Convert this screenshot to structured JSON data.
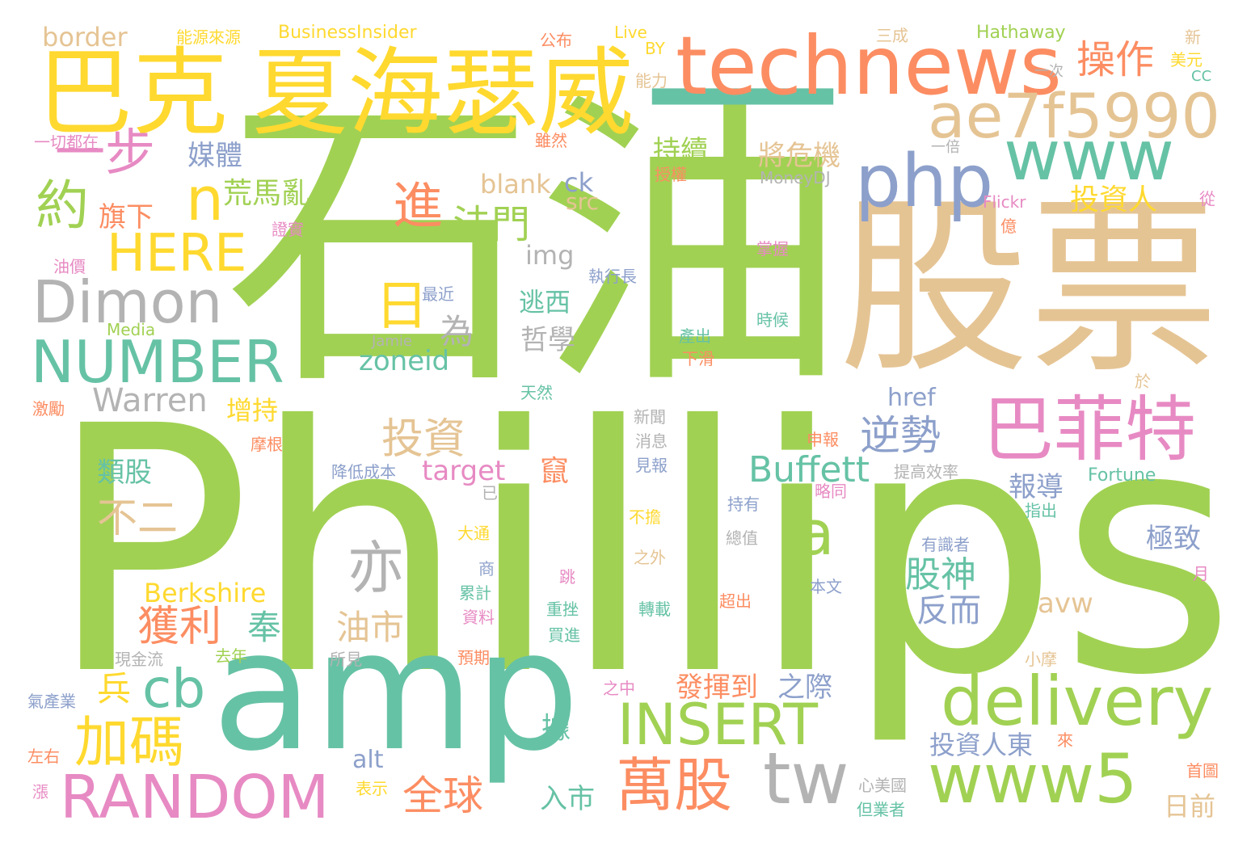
{
  "colors": {
    "green": "#a1d153",
    "teal": "#66c2a5",
    "tan": "#e5c494",
    "orange": "#fc8d62",
    "yellow": "#ffd92f",
    "blue": "#8da0cb",
    "pink": "#e78ac3",
    "gray": "#b3b3b3"
  },
  "words": [
    {
      "text": "Phillips",
      "color": "green"
    },
    {
      "text": "石油",
      "color": "green"
    },
    {
      "text": "股票",
      "color": "tan"
    },
    {
      "text": "amp",
      "color": "teal"
    },
    {
      "text": "一",
      "color": "teal"
    },
    {
      "text": "巴克",
      "color": "yellow"
    },
    {
      "text": "夏海瑟威",
      "color": "yellow"
    },
    {
      "text": "technews",
      "color": "orange"
    },
    {
      "text": "ae7f5990",
      "color": "tan"
    },
    {
      "text": "www",
      "color": "teal"
    },
    {
      "text": "php",
      "color": "blue"
    },
    {
      "text": "巴菲特",
      "color": "pink"
    },
    {
      "text": "delivery",
      "color": "green"
    },
    {
      "text": "www5",
      "color": "green"
    },
    {
      "text": "tw",
      "color": "gray"
    },
    {
      "text": "萬股",
      "color": "orange"
    },
    {
      "text": "INSERT",
      "color": "green"
    },
    {
      "text": "RANDOM",
      "color": "pink"
    },
    {
      "text": "加碼",
      "color": "yellow"
    },
    {
      "text": "cb",
      "color": "teal"
    },
    {
      "text": "NUMBER",
      "color": "teal"
    },
    {
      "text": "Dimon",
      "color": "gray"
    },
    {
      "text": "HERE",
      "color": "yellow"
    },
    {
      "text": "n",
      "color": "yellow"
    },
    {
      "text": "約",
      "color": "green"
    },
    {
      "text": "一步",
      "color": "pink"
    },
    {
      "text": "操作",
      "color": "orange"
    },
    {
      "text": "進",
      "color": "orange"
    },
    {
      "text": "日",
      "color": "yellow"
    },
    {
      "text": "亦",
      "color": "gray"
    },
    {
      "text": "a",
      "color": "green"
    },
    {
      "text": "投資",
      "color": "tan"
    },
    {
      "text": "獲利",
      "color": "orange"
    },
    {
      "text": "法門",
      "color": "green"
    },
    {
      "text": "不二",
      "color": "tan"
    },
    {
      "text": "Buffett",
      "color": "teal"
    },
    {
      "text": "逆勢",
      "color": "blue"
    },
    {
      "text": "全球",
      "color": "orange"
    },
    {
      "text": "Warren",
      "color": "gray"
    },
    {
      "text": "zoneid",
      "color": "teal"
    },
    {
      "text": "target",
      "color": "pink"
    },
    {
      "text": "Berkshire",
      "color": "yellow"
    },
    {
      "text": "股神",
      "color": "teal"
    },
    {
      "text": "反而",
      "color": "blue"
    },
    {
      "text": "油市",
      "color": "tan"
    },
    {
      "text": "為",
      "color": "gray"
    },
    {
      "text": "媒體",
      "color": "blue"
    },
    {
      "text": "荒馬亂",
      "color": "green"
    },
    {
      "text": "旗下",
      "color": "orange"
    },
    {
      "text": "持續",
      "color": "green"
    },
    {
      "text": "將危機",
      "color": "tan"
    },
    {
      "text": "投資人",
      "color": "yellow"
    },
    {
      "text": "blank",
      "color": "tan"
    },
    {
      "text": "ck",
      "color": "blue"
    },
    {
      "text": "src",
      "color": "tan"
    },
    {
      "text": "img",
      "color": "gray"
    },
    {
      "text": "逃西",
      "color": "teal"
    },
    {
      "text": "哲學",
      "color": "gray"
    },
    {
      "text": "增持",
      "color": "yellow"
    },
    {
      "text": "類股",
      "color": "teal"
    },
    {
      "text": "兵",
      "color": "yellow"
    },
    {
      "text": "奉",
      "color": "teal"
    },
    {
      "text": "發揮到",
      "color": "orange"
    },
    {
      "text": "之際",
      "color": "blue"
    },
    {
      "text": "href",
      "color": "blue"
    },
    {
      "text": "報導",
      "color": "blue"
    },
    {
      "text": "極致",
      "color": "blue"
    },
    {
      "text": "avw",
      "color": "tan"
    },
    {
      "text": "投資人東",
      "color": "blue"
    },
    {
      "text": "日前",
      "color": "tan"
    },
    {
      "text": "入市",
      "color": "teal"
    },
    {
      "text": "alt",
      "color": "blue"
    },
    {
      "text": "border",
      "color": "tan"
    },
    {
      "text": "能源來源",
      "color": "yellow"
    },
    {
      "text": "BusinessInsider",
      "color": "yellow"
    },
    {
      "text": "公布",
      "color": "orange"
    },
    {
      "text": "Live",
      "color": "yellow"
    },
    {
      "text": "BY",
      "color": "yellow"
    },
    {
      "text": "三成",
      "color": "tan"
    },
    {
      "text": "Hathaway",
      "color": "green"
    },
    {
      "text": "新",
      "color": "tan"
    },
    {
      "text": "美元",
      "color": "yellow"
    },
    {
      "text": "CC",
      "color": "teal"
    },
    {
      "text": "能力",
      "color": "tan"
    },
    {
      "text": "一次",
      "color": "gray"
    },
    {
      "text": "一切都在",
      "color": "pink"
    },
    {
      "text": "雖然",
      "color": "orange"
    },
    {
      "text": "一倍",
      "color": "gray"
    },
    {
      "text": "授權",
      "color": "orange"
    },
    {
      "text": "MoneyDJ",
      "color": "gray"
    },
    {
      "text": "Flickr",
      "color": "pink"
    },
    {
      "text": "億",
      "color": "orange"
    },
    {
      "text": "從",
      "color": "pink"
    },
    {
      "text": "證實",
      "color": "pink"
    },
    {
      "text": "掌握",
      "color": "pink"
    },
    {
      "text": "油價",
      "color": "pink"
    },
    {
      "text": "執行長",
      "color": "blue"
    },
    {
      "text": "最近",
      "color": "blue"
    },
    {
      "text": "時候",
      "color": "teal"
    },
    {
      "text": "Media",
      "color": "green"
    },
    {
      "text": "Jamie",
      "color": "gray"
    },
    {
      "text": "產出",
      "color": "teal"
    },
    {
      "text": "下滑",
      "color": "orange"
    },
    {
      "text": "天然",
      "color": "teal"
    },
    {
      "text": "於",
      "color": "tan"
    },
    {
      "text": "激勵",
      "color": "orange"
    },
    {
      "text": "新聞",
      "color": "gray"
    },
    {
      "text": "消息",
      "color": "gray"
    },
    {
      "text": "申報",
      "color": "orange"
    },
    {
      "text": "摩根",
      "color": "orange"
    },
    {
      "text": "降低成本",
      "color": "blue"
    },
    {
      "text": "提高效率",
      "color": "gray"
    },
    {
      "text": "見報",
      "color": "blue"
    },
    {
      "text": "已",
      "color": "gray"
    },
    {
      "text": "Fortune",
      "color": "teal"
    },
    {
      "text": "略同",
      "color": "pink"
    },
    {
      "text": "持有",
      "color": "blue"
    },
    {
      "text": "不擔",
      "color": "yellow"
    },
    {
      "text": "指出",
      "color": "teal"
    },
    {
      "text": "大通",
      "color": "yellow"
    },
    {
      "text": "總值",
      "color": "gray"
    },
    {
      "text": "有識者",
      "color": "blue"
    },
    {
      "text": "商",
      "color": "blue"
    },
    {
      "text": "之外",
      "color": "tan"
    },
    {
      "text": "跳",
      "color": "pink"
    },
    {
      "text": "累計",
      "color": "teal"
    },
    {
      "text": "本文",
      "color": "blue"
    },
    {
      "text": "月",
      "color": "pink"
    },
    {
      "text": "超出",
      "color": "orange"
    },
    {
      "text": "重挫",
      "color": "teal"
    },
    {
      "text": "轉載",
      "color": "teal"
    },
    {
      "text": "資料",
      "color": "pink"
    },
    {
      "text": "現金流",
      "color": "gray"
    },
    {
      "text": "買進",
      "color": "teal"
    },
    {
      "text": "去年",
      "color": "green"
    },
    {
      "text": "所見",
      "color": "gray"
    },
    {
      "text": "預期",
      "color": "orange"
    },
    {
      "text": "小摩",
      "color": "tan"
    },
    {
      "text": "之中",
      "color": "pink"
    },
    {
      "text": "氣產業",
      "color": "blue"
    },
    {
      "text": "竄",
      "color": "orange"
    },
    {
      "text": "據",
      "color": "teal"
    },
    {
      "text": "來",
      "color": "orange"
    },
    {
      "text": "左右",
      "color": "orange"
    },
    {
      "text": "表示",
      "color": "yellow"
    },
    {
      "text": "心美國",
      "color": "gray"
    },
    {
      "text": "首圖",
      "color": "orange"
    },
    {
      "text": "漲",
      "color": "pink"
    },
    {
      "text": "但業者",
      "color": "teal"
    }
  ]
}
